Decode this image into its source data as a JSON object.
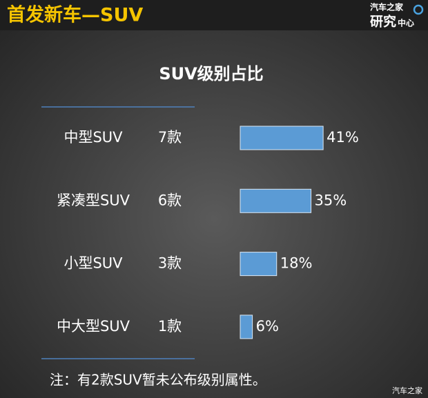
{
  "header": {
    "title": "首发新车—SUV",
    "logo_top": "汽车之家",
    "logo_main": "研究",
    "logo_sub": "中心"
  },
  "chart_data": {
    "type": "bar",
    "orientation": "horizontal",
    "title": "SUV级别占比",
    "categories": [
      "中型SUV",
      "紧凑型SUV",
      "小型SUV",
      "中大型SUV"
    ],
    "counts": [
      "7款",
      "6款",
      "3款",
      "1款"
    ],
    "values": [
      41,
      35,
      18,
      6
    ],
    "value_labels": [
      "41%",
      "35%",
      "18%",
      "6%"
    ],
    "color": "#5b9bd5",
    "note": "注：有2款SUV暂未公布级别属性。"
  },
  "watermark": "汽车之家"
}
